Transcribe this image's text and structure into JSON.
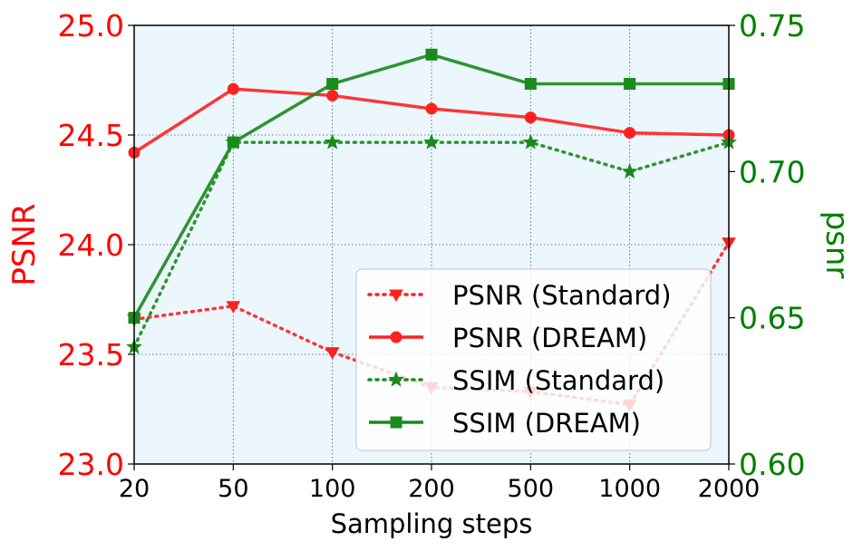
{
  "chart_data": {
    "type": "line",
    "categories": [
      "20",
      "50",
      "100",
      "200",
      "500",
      "1000",
      "2000"
    ],
    "xlabel": "Sampling steps",
    "ylabel_left": "PSNR",
    "ylabel_right": "psnr",
    "ylim_left": [
      23.0,
      25.0
    ],
    "ylim_right": [
      0.6,
      0.75
    ],
    "yticks_left": [
      "23.0",
      "23.5",
      "24.0",
      "24.5",
      "25.0"
    ],
    "yticks_right": [
      "0.60",
      "0.65",
      "0.70",
      "0.75"
    ],
    "grid": true,
    "legend_position": "lower-right",
    "background_color": "#ebf6fd",
    "series": [
      {
        "name": "PSNR (Standard)",
        "axis": "left",
        "color": "#ff2020",
        "line_style": "dotted",
        "marker": "triangle-down",
        "values": [
          23.66,
          23.72,
          23.51,
          23.35,
          23.33,
          23.27,
          24.01
        ]
      },
      {
        "name": "PSNR (DREAM)",
        "axis": "left",
        "color": "#ff2020",
        "line_style": "solid",
        "marker": "circle",
        "values": [
          24.42,
          24.71,
          24.68,
          24.62,
          24.58,
          24.51,
          24.5
        ]
      },
      {
        "name": "SSIM (Standard)",
        "axis": "right",
        "color": "#1a8a1a",
        "line_style": "dotted",
        "marker": "star",
        "values": [
          0.64,
          0.71,
          0.71,
          0.71,
          0.71,
          0.7,
          0.71
        ]
      },
      {
        "name": "SSIM (DREAM)",
        "axis": "right",
        "color": "#1a8a1a",
        "line_style": "solid",
        "marker": "square",
        "values": [
          0.65,
          0.71,
          0.73,
          0.74,
          0.73,
          0.73,
          0.73
        ]
      }
    ]
  }
}
